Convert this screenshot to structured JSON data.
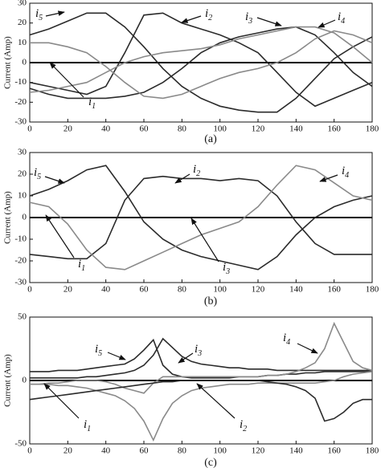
{
  "chart_data": [
    {
      "type": "line",
      "caption": "(a)",
      "ylabel": "Current (Amp)",
      "x": [
        0,
        10,
        20,
        30,
        40,
        50,
        60,
        70,
        80,
        90,
        100,
        110,
        120,
        130,
        140,
        150,
        160,
        170,
        180
      ],
      "xlim": [
        0,
        180
      ],
      "xticks": [
        0,
        20,
        40,
        60,
        80,
        100,
        120,
        140,
        160,
        180
      ],
      "ylim": [
        -30,
        30
      ],
      "yticks": [
        -30,
        -20,
        -10,
        0,
        10,
        20,
        30
      ],
      "series": [
        {
          "color": "#2b2b2b",
          "values": [
            14,
            17,
            21,
            25,
            25,
            18,
            8,
            -3,
            -12,
            -18,
            -22,
            -24,
            -25,
            -25,
            -18,
            -8,
            2,
            8,
            13
          ]
        },
        {
          "color": "#2b2b2b",
          "values": [
            -10,
            -12,
            -14,
            -16,
            -12,
            5,
            24,
            25,
            20,
            17,
            14,
            10,
            5,
            -5,
            -15,
            -22,
            -18,
            -14,
            -10
          ]
        },
        {
          "color": "#2b2b2b",
          "values": [
            -13,
            -16,
            -18,
            -18,
            -18,
            -17,
            -15,
            -10,
            -3,
            5,
            10,
            13,
            15,
            17,
            18,
            14,
            5,
            -5,
            -12
          ]
        },
        {
          "color": "#8a8a8a",
          "values": [
            -15,
            -14,
            -12,
            -10,
            -5,
            0,
            3,
            5,
            6,
            7,
            9,
            12,
            14,
            16,
            18,
            18,
            15,
            8,
            0
          ]
        },
        {
          "color": "#8a8a8a",
          "values": [
            10,
            10,
            8,
            5,
            -2,
            -10,
            -17,
            -18,
            -16,
            -12,
            -8,
            -5,
            -3,
            0,
            5,
            12,
            16,
            14,
            10
          ]
        }
      ],
      "annotations": [
        {
          "symbol": "i",
          "subscript": "5"
        },
        {
          "symbol": "i",
          "subscript": "2"
        },
        {
          "symbol": "i",
          "subscript": "3"
        },
        {
          "symbol": "i",
          "subscript": "4"
        },
        {
          "symbol": "i",
          "subscript": "1"
        }
      ]
    },
    {
      "type": "line",
      "caption": "(b)",
      "ylabel": "Current (Amp)",
      "x": [
        0,
        10,
        20,
        30,
        40,
        50,
        60,
        70,
        80,
        90,
        100,
        110,
        120,
        130,
        140,
        150,
        160,
        170,
        180
      ],
      "xlim": [
        0,
        180
      ],
      "xticks": [
        0,
        20,
        40,
        60,
        80,
        100,
        120,
        140,
        160,
        180
      ],
      "ylim": [
        -30,
        30
      ],
      "yticks": [
        -30,
        -20,
        -10,
        0,
        10,
        20,
        30
      ],
      "series": [
        {
          "color": "#2b2b2b",
          "values": [
            10,
            13,
            17,
            22,
            24,
            12,
            -2,
            -10,
            -15,
            -18,
            -20,
            -22,
            -24,
            -18,
            -8,
            0,
            5,
            8,
            10
          ]
        },
        {
          "color": "#2b2b2b",
          "values": [
            -17,
            -18,
            -19,
            -19,
            -12,
            8,
            18,
            19,
            18,
            18,
            17,
            18,
            17,
            10,
            -2,
            -12,
            -17,
            -17,
            -17
          ]
        },
        {
          "color": "#8a8a8a",
          "values": [
            7,
            5,
            -3,
            -15,
            -23,
            -24,
            -20,
            -16,
            -12,
            -8,
            -5,
            -2,
            5,
            15,
            24,
            22,
            16,
            10,
            8
          ]
        }
      ],
      "annotations": [
        {
          "symbol": "i",
          "subscript": "5"
        },
        {
          "symbol": "i",
          "subscript": "2"
        },
        {
          "symbol": "i",
          "subscript": "4"
        },
        {
          "symbol": "i",
          "subscript": "1"
        },
        {
          "symbol": "i",
          "subscript": "3"
        }
      ]
    },
    {
      "type": "line",
      "caption": "(c)",
      "ylabel": "Current (Amp)",
      "x": [
        0,
        5,
        10,
        15,
        20,
        25,
        30,
        35,
        40,
        45,
        50,
        55,
        60,
        65,
        70,
        75,
        80,
        85,
        90,
        95,
        100,
        105,
        110,
        115,
        120,
        125,
        130,
        135,
        140,
        145,
        150,
        155,
        160,
        165,
        170,
        175,
        180
      ],
      "xlim": [
        0,
        180
      ],
      "xticks": [
        0,
        20,
        40,
        60,
        80,
        100,
        120,
        140,
        160,
        180
      ],
      "ylim": [
        -50,
        50
      ],
      "yticks": [
        -50,
        0,
        50
      ],
      "series": [
        {
          "color": "#2b2b2b",
          "values": [
            7,
            7,
            7,
            8,
            8,
            8,
            9,
            10,
            11,
            12,
            13,
            17,
            24,
            32,
            12,
            5,
            3,
            2,
            2,
            2,
            2,
            2,
            3,
            3,
            3,
            4,
            4,
            5,
            5,
            6,
            6,
            7,
            7,
            7,
            7,
            7,
            7
          ]
        },
        {
          "color": "#2b2b2b",
          "values": [
            2,
            2,
            2,
            2,
            2,
            2,
            3,
            3,
            4,
            5,
            6,
            8,
            12,
            20,
            33,
            26,
            19,
            15,
            13,
            12,
            11,
            10,
            10,
            9,
            9,
            9,
            8,
            8,
            8,
            8,
            8,
            8,
            8,
            8,
            8,
            8,
            8
          ]
        },
        {
          "color": "#8a8a8a",
          "values": [
            -3,
            -3,
            -2,
            -2,
            -1,
            0,
            0,
            0,
            -1,
            -3,
            -6,
            -8,
            -10,
            -2,
            3,
            3,
            3,
            3,
            3,
            3,
            3,
            3,
            3,
            3,
            3,
            4,
            4,
            5,
            7,
            10,
            14,
            25,
            45,
            30,
            15,
            10,
            8
          ]
        },
        {
          "color": "#8a8a8a",
          "values": [
            -3,
            -3,
            -3,
            -4,
            -4,
            -5,
            -6,
            -8,
            -10,
            -12,
            -16,
            -22,
            -32,
            -47,
            -30,
            -18,
            -12,
            -8,
            -6,
            -5,
            -4,
            -3,
            -3,
            -3,
            -2,
            -2,
            -2,
            -2,
            -2,
            -2,
            -2,
            -1,
            0,
            3,
            5,
            6,
            7
          ]
        },
        {
          "color": "#2b2b2b",
          "values": [
            -15,
            -14,
            -13,
            -12,
            -11,
            -10,
            -9,
            -8,
            -7,
            -6,
            -5,
            -4,
            -3,
            -2,
            -1,
            -1,
            0,
            0,
            0,
            0,
            0,
            0,
            0,
            0,
            0,
            -1,
            -2,
            -3,
            -5,
            -8,
            -14,
            -32,
            -30,
            -25,
            -18,
            -15,
            -15
          ]
        }
      ],
      "annotations": [
        {
          "symbol": "i",
          "subscript": "5"
        },
        {
          "symbol": "i",
          "subscript": "3"
        },
        {
          "symbol": "i",
          "subscript": "4"
        },
        {
          "symbol": "i",
          "subscript": "1"
        },
        {
          "symbol": "i",
          "subscript": "2"
        }
      ]
    }
  ]
}
